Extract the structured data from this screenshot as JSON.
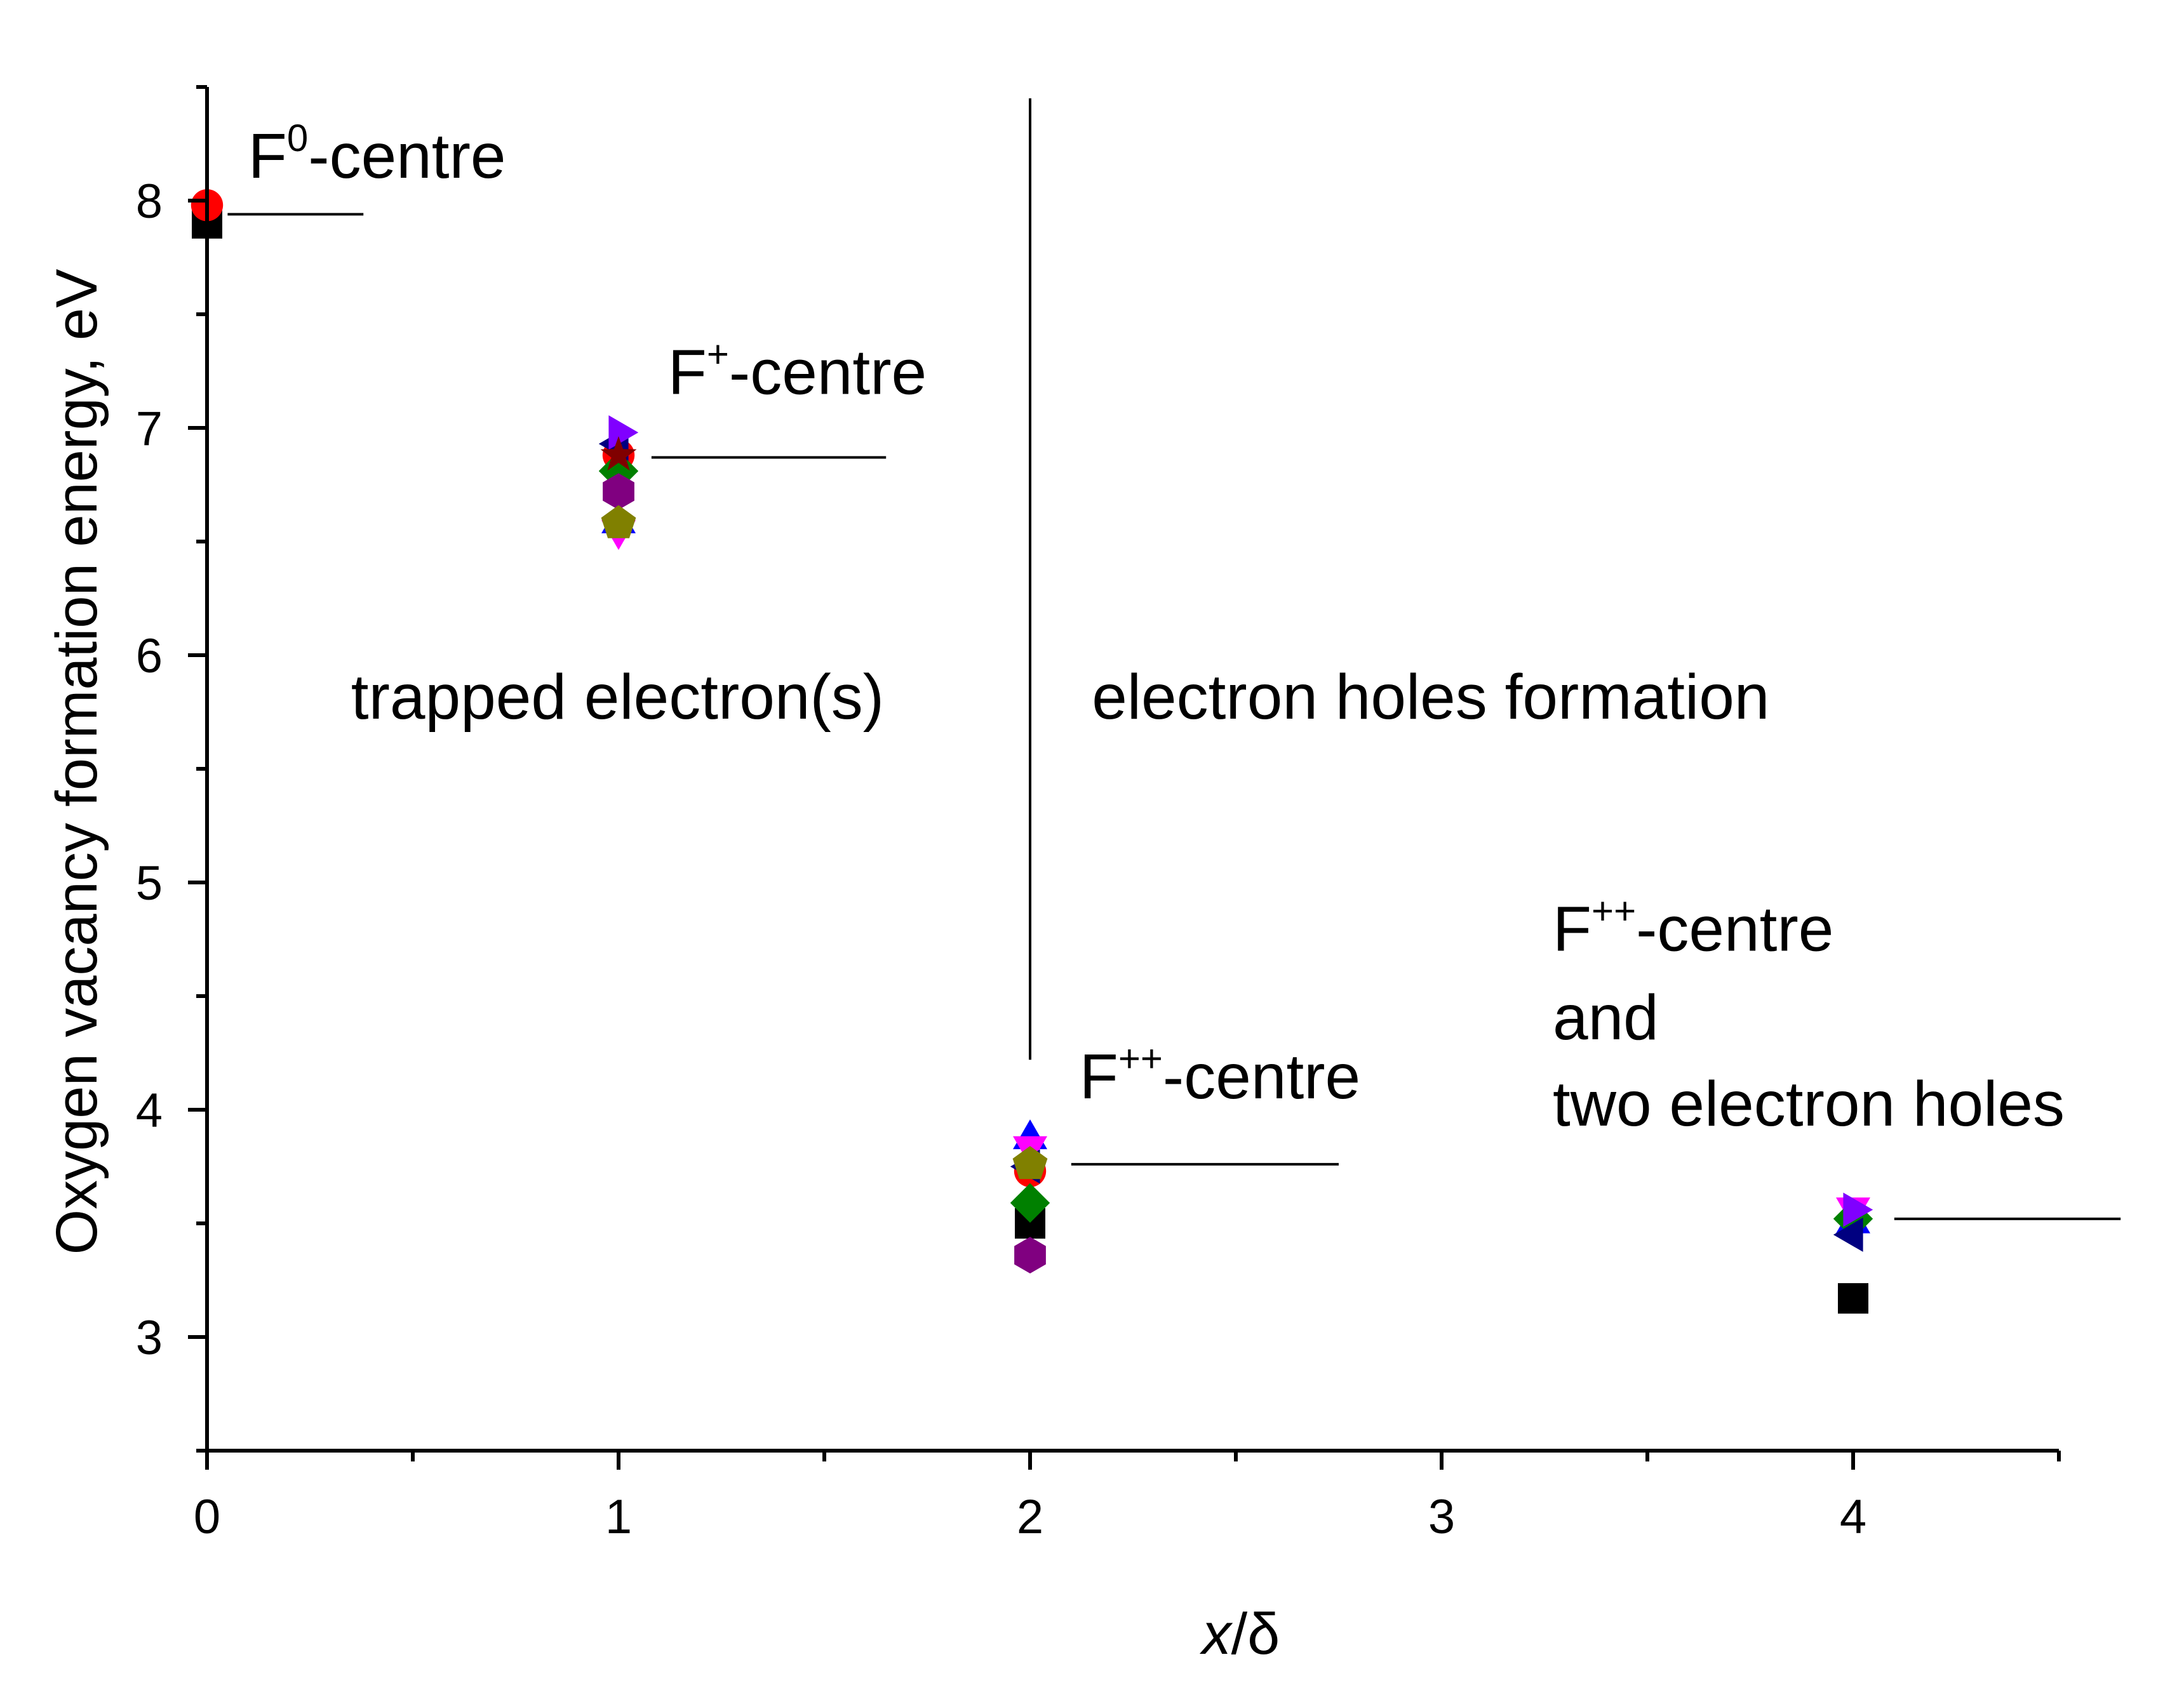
{
  "chart_data": {
    "type": "scatter",
    "xlabel": "x/δ",
    "xlabel_parts": {
      "variable": "x",
      "rest": "/δ"
    },
    "ylabel": "Oxygen vacancy formation energy, eV",
    "xlim": [
      0,
      4.5
    ],
    "ylim": [
      2.5,
      8.5
    ],
    "x_ticks": [
      0,
      1,
      2,
      3,
      4
    ],
    "x_tick_labels": [
      "0",
      "1",
      "2",
      "3",
      "4"
    ],
    "x_minor_ticks": [
      0.5,
      1.5,
      2.5,
      3.5,
      4.5
    ],
    "y_ticks": [
      3,
      4,
      5,
      6,
      7,
      8
    ],
    "y_tick_labels": [
      "3",
      "4",
      "5",
      "6",
      "7",
      "8"
    ],
    "y_minor_ticks": [
      2.5,
      3.5,
      4.5,
      5.5,
      6.5,
      7.5,
      8.5
    ],
    "grid": false,
    "legend": "none",
    "series": [
      {
        "marker": "square",
        "color": "#000000",
        "points": [
          [
            0,
            7.9
          ],
          [
            2,
            3.5
          ],
          [
            4,
            3.17
          ]
        ]
      },
      {
        "marker": "circle",
        "color": "#ff0000",
        "points": [
          [
            0,
            7.98
          ],
          [
            1,
            6.88
          ],
          [
            2,
            3.73
          ]
        ]
      },
      {
        "marker": "triangle-up",
        "color": "#0000ff",
        "points": [
          [
            1,
            6.58
          ],
          [
            2,
            3.87
          ],
          [
            4,
            3.5
          ]
        ]
      },
      {
        "marker": "triangle-down",
        "color": "#ff00ff",
        "points": [
          [
            1,
            6.55
          ],
          [
            2,
            3.84
          ],
          [
            4,
            3.57
          ]
        ]
      },
      {
        "marker": "diamond",
        "color": "#008000",
        "points": [
          [
            1,
            6.81
          ],
          [
            2,
            3.59
          ],
          [
            4,
            3.52
          ]
        ]
      },
      {
        "marker": "triangle-left",
        "color": "#000080",
        "points": [
          [
            1,
            6.93
          ],
          [
            2,
            3.75
          ],
          [
            4,
            3.45
          ]
        ]
      },
      {
        "marker": "triangle-right",
        "color": "#8000ff",
        "points": [
          [
            1,
            6.98
          ],
          [
            4,
            3.56
          ]
        ]
      },
      {
        "marker": "hexagon",
        "color": "#800080",
        "points": [
          [
            1,
            6.72
          ],
          [
            2,
            3.36
          ]
        ]
      },
      {
        "marker": "star",
        "color": "#800000",
        "points": [
          [
            1,
            6.88
          ]
        ]
      },
      {
        "marker": "pentagon",
        "color": "#808000",
        "points": [
          [
            1,
            6.58
          ],
          [
            2,
            3.76
          ]
        ]
      }
    ],
    "level_lines": [
      {
        "x": [
          0.05,
          0.38
        ],
        "y": 7.94
      },
      {
        "x": [
          1.08,
          1.65
        ],
        "y": 6.87
      },
      {
        "x": [
          2.1,
          2.75
        ],
        "y": 3.76
      },
      {
        "x": [
          4.1,
          4.65
        ],
        "y": 3.52
      }
    ],
    "divider": {
      "x": 2.0,
      "y": [
        4.22,
        8.45
      ]
    },
    "annotations": [
      {
        "base": "F",
        "sup": "0",
        "rest": "-centre",
        "x": 0.1,
        "y": 8.1
      },
      {
        "base": "F",
        "sup": "+",
        "rest": "-centre",
        "x": 1.12,
        "y": 7.15
      },
      {
        "base": "F",
        "sup": "++",
        "rest": "-centre",
        "x": 2.12,
        "y": 4.05
      },
      {
        "base": "F",
        "sup": "++",
        "rest": "-centre",
        "x": 3.27,
        "y": 4.7
      },
      {
        "base": "and",
        "sup": "",
        "rest": "",
        "x": 3.27,
        "y": 4.31
      },
      {
        "base": "two electron holes",
        "sup": "",
        "rest": "",
        "x": 3.27,
        "y": 3.93
      },
      {
        "base": "trapped electron(s)",
        "sup": "",
        "rest": "",
        "x": 0.35,
        "y": 5.72
      },
      {
        "base": "electron holes formation",
        "sup": "",
        "rest": "",
        "x": 2.15,
        "y": 5.72
      }
    ]
  }
}
